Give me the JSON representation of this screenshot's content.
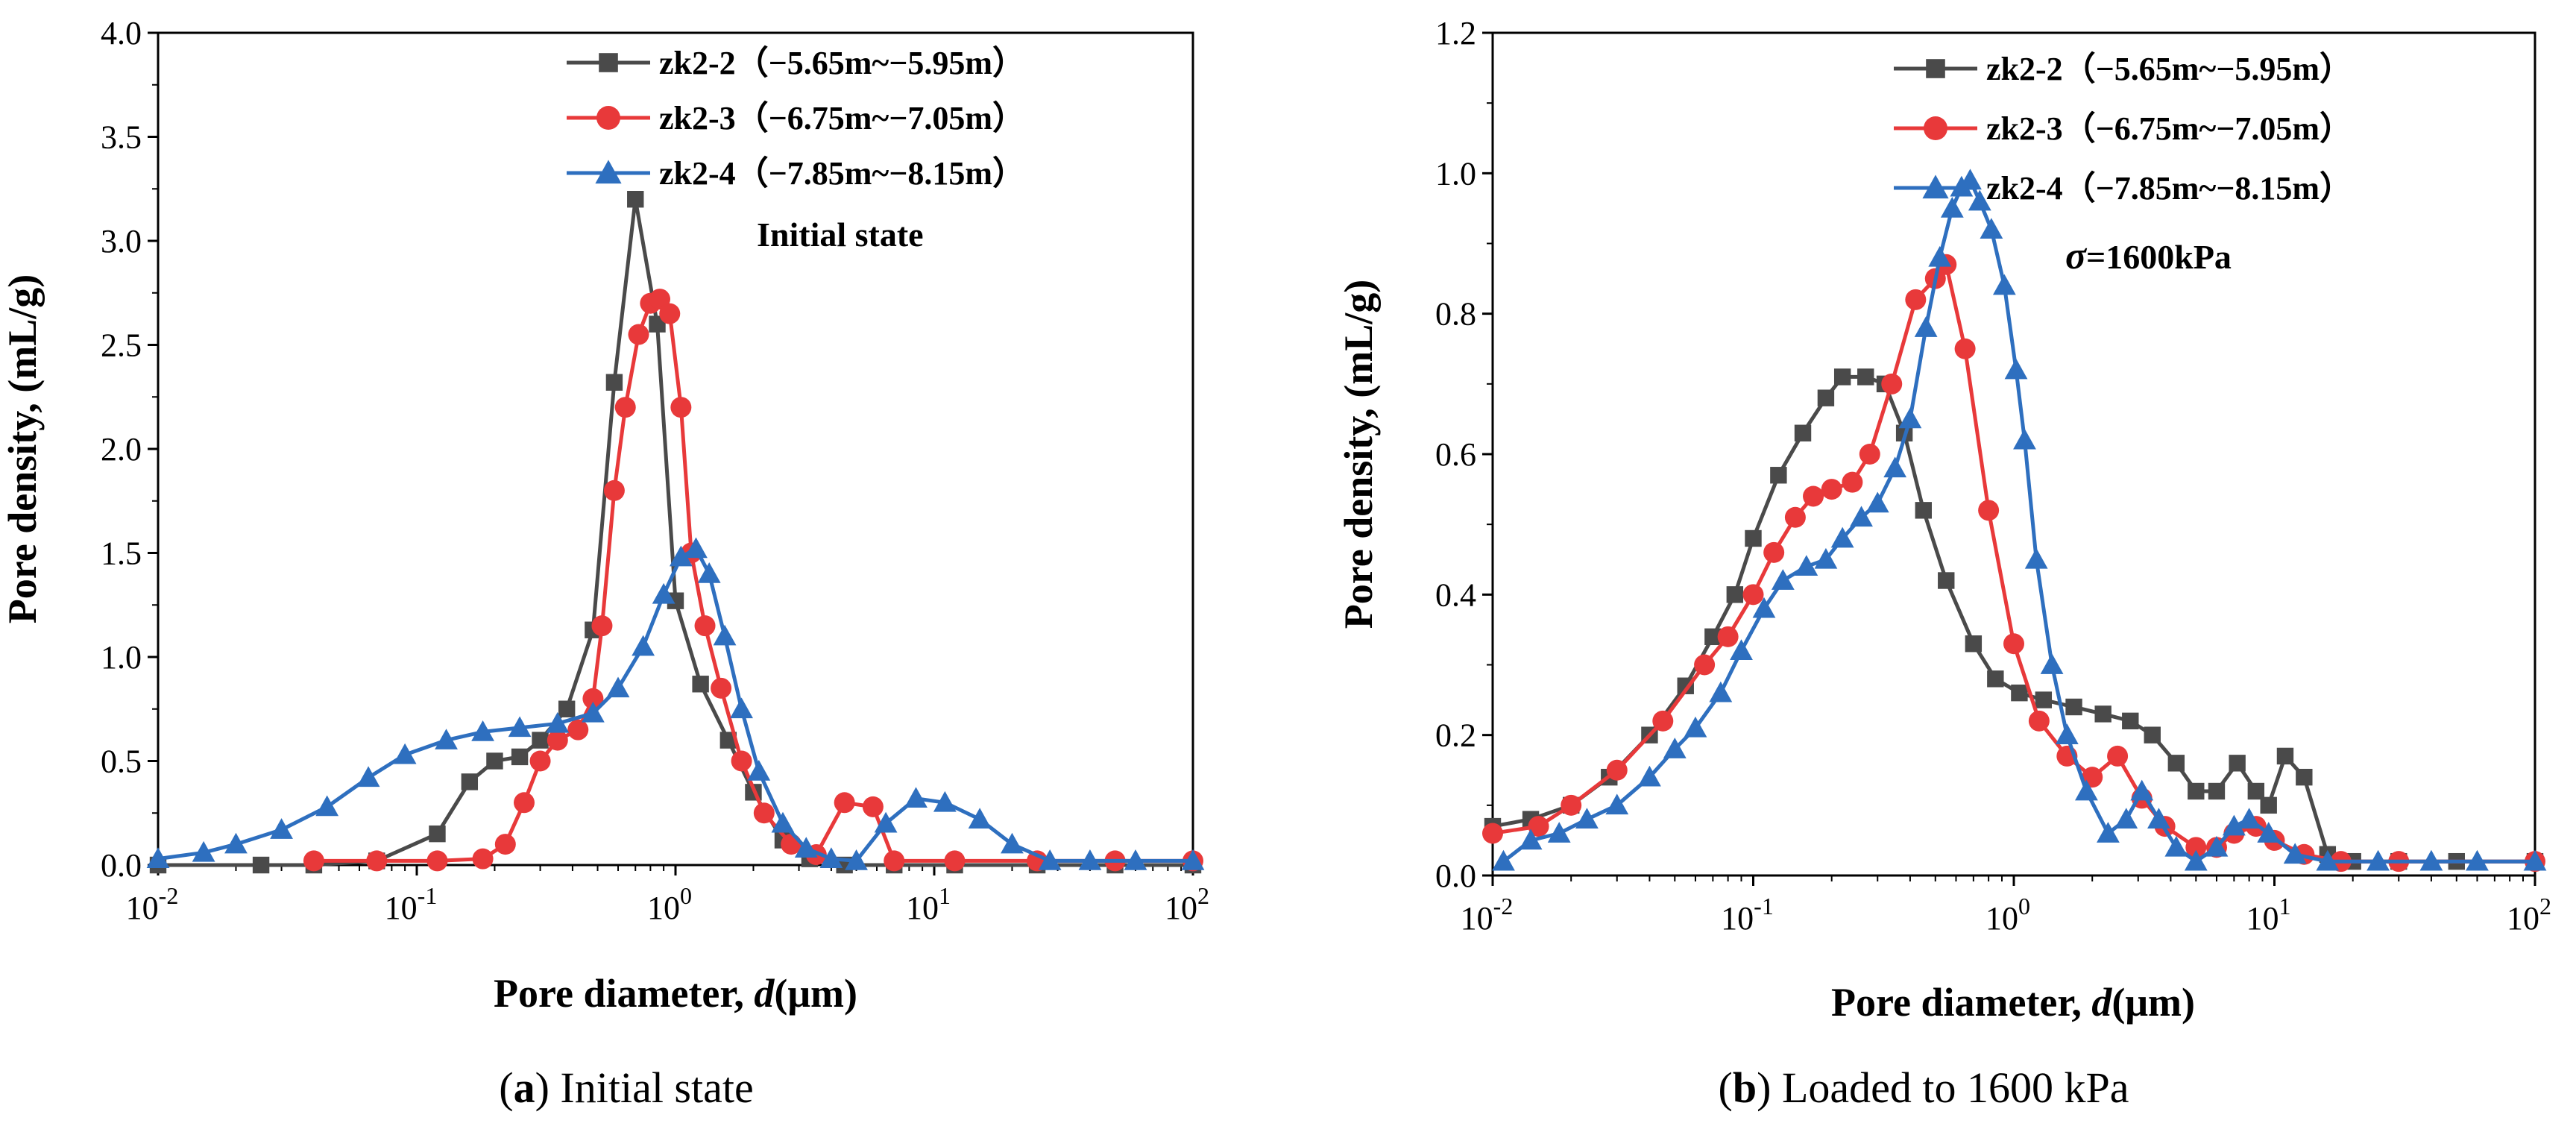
{
  "chart_data": [
    {
      "type": "line",
      "panel": "a",
      "caption_letter": "a",
      "caption_text": "Initial state",
      "annotation": "Initial state",
      "annotation_prefix": "",
      "xlabel": "Pore diameter, ",
      "xlabel_var": "d",
      "xlabel_unit": "(μm)",
      "ylabel": "Pore density, (mL/g)",
      "xscale": "log",
      "xlim": [
        0.01,
        100
      ],
      "ylim": [
        0,
        4.0
      ],
      "x_ticks": [
        {
          "exp": -2,
          "base": "10",
          "exp_label": "-2"
        },
        {
          "exp": -1,
          "base": "10",
          "exp_label": "-1"
        },
        {
          "exp": 0,
          "base": "10",
          "exp_label": "0"
        },
        {
          "exp": 1,
          "base": "10",
          "exp_label": "1"
        },
        {
          "exp": 2,
          "base": "10",
          "exp_label": "2"
        }
      ],
      "y_ticks": [
        {
          "v": 0,
          "label": "0.0"
        },
        {
          "v": 0.5,
          "label": "0.5"
        },
        {
          "v": 1.0,
          "label": "1.0"
        },
        {
          "v": 1.5,
          "label": "1.5"
        },
        {
          "v": 2.0,
          "label": "2.0"
        },
        {
          "v": 2.5,
          "label": "2.5"
        },
        {
          "v": 3.0,
          "label": "3.0"
        },
        {
          "v": 3.5,
          "label": "3.5"
        },
        {
          "v": 4.0,
          "label": "4.0"
        }
      ],
      "legend_position": "top-right",
      "series": [
        {
          "name": "zk2-2（−5.65m~−5.95m）",
          "color": "#4a4a4a",
          "marker": "square",
          "points": [
            [
              0.01,
              0
            ],
            [
              0.025,
              0
            ],
            [
              0.04,
              0
            ],
            [
              0.07,
              0.02
            ],
            [
              0.12,
              0.15
            ],
            [
              0.16,
              0.4
            ],
            [
              0.2,
              0.5
            ],
            [
              0.25,
              0.52
            ],
            [
              0.3,
              0.6
            ],
            [
              0.38,
              0.75
            ],
            [
              0.48,
              1.13
            ],
            [
              0.58,
              2.32
            ],
            [
              0.7,
              3.2
            ],
            [
              0.85,
              2.6
            ],
            [
              1.0,
              1.27
            ],
            [
              1.25,
              0.87
            ],
            [
              1.6,
              0.6
            ],
            [
              2.0,
              0.35
            ],
            [
              2.6,
              0.12
            ],
            [
              3.3,
              0.03
            ],
            [
              4.5,
              0
            ],
            [
              7,
              0
            ],
            [
              12,
              0
            ],
            [
              25,
              0
            ],
            [
              50,
              0
            ],
            [
              100,
              0
            ]
          ]
        },
        {
          "name": "zk2-3（−6.75m~−7.05m）",
          "color": "#e8393a",
          "marker": "circle",
          "points": [
            [
              0.04,
              0.02
            ],
            [
              0.07,
              0.02
            ],
            [
              0.12,
              0.02
            ],
            [
              0.18,
              0.03
            ],
            [
              0.22,
              0.1
            ],
            [
              0.26,
              0.3
            ],
            [
              0.3,
              0.5
            ],
            [
              0.35,
              0.6
            ],
            [
              0.42,
              0.65
            ],
            [
              0.48,
              0.8
            ],
            [
              0.52,
              1.15
            ],
            [
              0.58,
              1.8
            ],
            [
              0.64,
              2.2
            ],
            [
              0.72,
              2.55
            ],
            [
              0.8,
              2.7
            ],
            [
              0.87,
              2.72
            ],
            [
              0.95,
              2.65
            ],
            [
              1.05,
              2.2
            ],
            [
              1.15,
              1.5
            ],
            [
              1.3,
              1.15
            ],
            [
              1.5,
              0.85
            ],
            [
              1.8,
              0.5
            ],
            [
              2.2,
              0.25
            ],
            [
              2.8,
              0.1
            ],
            [
              3.5,
              0.05
            ],
            [
              4.5,
              0.3
            ],
            [
              5.8,
              0.28
            ],
            [
              7,
              0.02
            ],
            [
              12,
              0.02
            ],
            [
              25,
              0.02
            ],
            [
              50,
              0.02
            ],
            [
              100,
              0.02
            ]
          ]
        },
        {
          "name": "zk2-4（−7.85m~−8.15m）",
          "color": "#2e6fbf",
          "marker": "triangle",
          "points": [
            [
              0.01,
              0.03
            ],
            [
              0.015,
              0.06
            ],
            [
              0.02,
              0.1
            ],
            [
              0.03,
              0.17
            ],
            [
              0.045,
              0.28
            ],
            [
              0.065,
              0.42
            ],
            [
              0.09,
              0.53
            ],
            [
              0.13,
              0.6
            ],
            [
              0.18,
              0.64
            ],
            [
              0.25,
              0.66
            ],
            [
              0.35,
              0.68
            ],
            [
              0.48,
              0.73
            ],
            [
              0.6,
              0.85
            ],
            [
              0.75,
              1.05
            ],
            [
              0.9,
              1.3
            ],
            [
              1.05,
              1.48
            ],
            [
              1.2,
              1.52
            ],
            [
              1.35,
              1.4
            ],
            [
              1.55,
              1.1
            ],
            [
              1.8,
              0.75
            ],
            [
              2.1,
              0.45
            ],
            [
              2.6,
              0.2
            ],
            [
              3.2,
              0.08
            ],
            [
              4,
              0.03
            ],
            [
              5,
              0.02
            ],
            [
              6.5,
              0.2
            ],
            [
              8.5,
              0.32
            ],
            [
              11,
              0.3
            ],
            [
              15,
              0.22
            ],
            [
              20,
              0.1
            ],
            [
              28,
              0.02
            ],
            [
              40,
              0.02
            ],
            [
              60,
              0.02
            ],
            [
              100,
              0.02
            ]
          ]
        }
      ]
    },
    {
      "type": "line",
      "panel": "b",
      "caption_letter": "b",
      "caption_text": "Loaded to 1600 kPa",
      "annotation": "=1600kPa",
      "annotation_prefix": "σ",
      "xlabel": "Pore diameter, ",
      "xlabel_var": "d",
      "xlabel_unit": "(μm)",
      "ylabel": "Pore density, (mL/g)",
      "xscale": "log",
      "xlim": [
        0.01,
        100
      ],
      "ylim": [
        0,
        1.2
      ],
      "x_ticks": [
        {
          "exp": -2,
          "base": "10",
          "exp_label": "-2"
        },
        {
          "exp": -1,
          "base": "10",
          "exp_label": "-1"
        },
        {
          "exp": 0,
          "base": "10",
          "exp_label": "0"
        },
        {
          "exp": 1,
          "base": "10",
          "exp_label": "1"
        },
        {
          "exp": 2,
          "base": "10",
          "exp_label": "2"
        }
      ],
      "y_ticks": [
        {
          "v": 0,
          "label": "0.0"
        },
        {
          "v": 0.2,
          "label": "0.2"
        },
        {
          "v": 0.4,
          "label": "0.4"
        },
        {
          "v": 0.6,
          "label": "0.6"
        },
        {
          "v": 0.8,
          "label": "0.8"
        },
        {
          "v": 1.0,
          "label": "1.0"
        },
        {
          "v": 1.2,
          "label": "1.2"
        }
      ],
      "legend_position": "top-right",
      "series": [
        {
          "name": "zk2-2（−5.65m~−5.95m）",
          "color": "#4a4a4a",
          "marker": "square",
          "points": [
            [
              0.01,
              0.07
            ],
            [
              0.014,
              0.08
            ],
            [
              0.02,
              0.1
            ],
            [
              0.028,
              0.14
            ],
            [
              0.04,
              0.2
            ],
            [
              0.055,
              0.27
            ],
            [
              0.07,
              0.34
            ],
            [
              0.085,
              0.4
            ],
            [
              0.1,
              0.48
            ],
            [
              0.125,
              0.57
            ],
            [
              0.155,
              0.63
            ],
            [
              0.19,
              0.68
            ],
            [
              0.22,
              0.71
            ],
            [
              0.27,
              0.71
            ],
            [
              0.32,
              0.7
            ],
            [
              0.38,
              0.63
            ],
            [
              0.45,
              0.52
            ],
            [
              0.55,
              0.42
            ],
            [
              0.7,
              0.33
            ],
            [
              0.85,
              0.28
            ],
            [
              1.05,
              0.26
            ],
            [
              1.3,
              0.25
            ],
            [
              1.7,
              0.24
            ],
            [
              2.2,
              0.23
            ],
            [
              2.8,
              0.22
            ],
            [
              3.4,
              0.2
            ],
            [
              4.2,
              0.16
            ],
            [
              5,
              0.12
            ],
            [
              6,
              0.12
            ],
            [
              7.2,
              0.16
            ],
            [
              8.5,
              0.12
            ],
            [
              9.5,
              0.1
            ],
            [
              11,
              0.17
            ],
            [
              13,
              0.14
            ],
            [
              16,
              0.03
            ],
            [
              20,
              0.02
            ],
            [
              30,
              0.02
            ],
            [
              50,
              0.02
            ],
            [
              100,
              0.02
            ]
          ]
        },
        {
          "name": "zk2-3（−6.75m~−7.05m）",
          "color": "#e8393a",
          "marker": "circle",
          "points": [
            [
              0.01,
              0.06
            ],
            [
              0.015,
              0.07
            ],
            [
              0.02,
              0.1
            ],
            [
              0.03,
              0.15
            ],
            [
              0.045,
              0.22
            ],
            [
              0.065,
              0.3
            ],
            [
              0.08,
              0.34
            ],
            [
              0.1,
              0.4
            ],
            [
              0.12,
              0.46
            ],
            [
              0.145,
              0.51
            ],
            [
              0.17,
              0.54
            ],
            [
              0.2,
              0.55
            ],
            [
              0.24,
              0.56
            ],
            [
              0.28,
              0.6
            ],
            [
              0.34,
              0.7
            ],
            [
              0.42,
              0.82
            ],
            [
              0.5,
              0.85
            ],
            [
              0.55,
              0.87
            ],
            [
              0.65,
              0.75
            ],
            [
              0.8,
              0.52
            ],
            [
              1.0,
              0.33
            ],
            [
              1.25,
              0.22
            ],
            [
              1.6,
              0.17
            ],
            [
              2.0,
              0.14
            ],
            [
              2.5,
              0.17
            ],
            [
              3.1,
              0.11
            ],
            [
              3.8,
              0.07
            ],
            [
              5,
              0.04
            ],
            [
              6,
              0.04
            ],
            [
              7,
              0.06
            ],
            [
              8.5,
              0.07
            ],
            [
              10,
              0.05
            ],
            [
              13,
              0.03
            ],
            [
              18,
              0.02
            ],
            [
              30,
              0.02
            ],
            [
              100,
              0.02
            ]
          ]
        },
        {
          "name": "zk2-4（−7.85m~−8.15m）",
          "color": "#2e6fbf",
          "marker": "triangle",
          "points": [
            [
              0.011,
              0.02
            ],
            [
              0.014,
              0.05
            ],
            [
              0.018,
              0.06
            ],
            [
              0.023,
              0.08
            ],
            [
              0.03,
              0.1
            ],
            [
              0.04,
              0.14
            ],
            [
              0.05,
              0.18
            ],
            [
              0.06,
              0.21
            ],
            [
              0.075,
              0.26
            ],
            [
              0.09,
              0.32
            ],
            [
              0.11,
              0.38
            ],
            [
              0.13,
              0.42
            ],
            [
              0.16,
              0.44
            ],
            [
              0.19,
              0.45
            ],
            [
              0.22,
              0.48
            ],
            [
              0.26,
              0.51
            ],
            [
              0.3,
              0.53
            ],
            [
              0.35,
              0.58
            ],
            [
              0.4,
              0.65
            ],
            [
              0.46,
              0.78
            ],
            [
              0.52,
              0.88
            ],
            [
              0.58,
              0.95
            ],
            [
              0.63,
              0.98
            ],
            [
              0.68,
              0.99
            ],
            [
              0.74,
              0.96
            ],
            [
              0.82,
              0.92
            ],
            [
              0.92,
              0.84
            ],
            [
              1.02,
              0.72
            ],
            [
              1.1,
              0.62
            ],
            [
              1.22,
              0.45
            ],
            [
              1.4,
              0.3
            ],
            [
              1.6,
              0.2
            ],
            [
              1.9,
              0.12
            ],
            [
              2.3,
              0.06
            ],
            [
              2.7,
              0.08
            ],
            [
              3.1,
              0.12
            ],
            [
              3.6,
              0.08
            ],
            [
              4.2,
              0.04
            ],
            [
              5,
              0.02
            ],
            [
              6,
              0.04
            ],
            [
              7,
              0.07
            ],
            [
              8,
              0.08
            ],
            [
              9.5,
              0.06
            ],
            [
              12,
              0.03
            ],
            [
              16,
              0.02
            ],
            [
              25,
              0.02
            ],
            [
              40,
              0.02
            ],
            [
              60,
              0.02
            ],
            [
              100,
              0.02
            ]
          ]
        }
      ]
    }
  ]
}
